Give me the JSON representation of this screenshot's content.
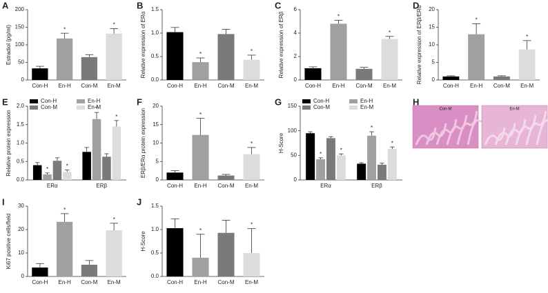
{
  "chart_data": [
    {
      "type": "bar",
      "panel_label": "A",
      "ylabel": "Estradiol (pg/ml)",
      "categories": [
        "Con-H",
        "En-H",
        "Con-M",
        "En-M"
      ],
      "values": [
        33,
        118,
        65,
        132
      ],
      "errors": [
        6,
        15,
        7,
        14
      ],
      "significance": [
        null,
        "*",
        null,
        "*"
      ],
      "colors": [
        "#000000",
        "#a0a0a0",
        "#7a7a7a",
        "#dcdcdc"
      ],
      "ylim": [
        0,
        200
      ],
      "yticks": [
        0,
        50,
        100,
        150,
        200
      ]
    },
    {
      "type": "bar",
      "panel_label": "B",
      "ylabel": "Relative expression of ERα",
      "categories": [
        "Con-H",
        "En-H",
        "Con-M",
        "En-M"
      ],
      "values": [
        1.02,
        0.38,
        0.98,
        0.43
      ],
      "errors": [
        0.1,
        0.09,
        0.1,
        0.1
      ],
      "significance": [
        null,
        "*",
        null,
        "*"
      ],
      "colors": [
        "#000000",
        "#a0a0a0",
        "#7a7a7a",
        "#dcdcdc"
      ],
      "ylim": [
        0,
        1.5
      ],
      "yticks": [
        {
          "value": 0,
          "label": "0.0"
        },
        {
          "value": 0.5,
          "label": "0.5"
        },
        {
          "value": 1,
          "label": "1.0"
        },
        {
          "value": 1.5,
          "label": "1.5"
        }
      ]
    },
    {
      "type": "bar",
      "panel_label": "C",
      "ylabel": "Relative expression of ERβ",
      "categories": [
        "Con-H",
        "En-H",
        "Con-M",
        "En-M"
      ],
      "values": [
        1.0,
        4.8,
        0.95,
        3.5
      ],
      "errors": [
        0.12,
        0.3,
        0.13,
        0.22
      ],
      "significance": [
        null,
        "*",
        null,
        "*"
      ],
      "colors": [
        "#000000",
        "#a0a0a0",
        "#7a7a7a",
        "#dcdcdc"
      ],
      "ylim": [
        0,
        6
      ],
      "yticks": [
        0,
        2,
        4,
        6
      ]
    },
    {
      "type": "bar",
      "panel_label": "D",
      "ylabel": "Relative expression of ERβ/ERα",
      "categories": [
        "Con-H",
        "En-H",
        "Con-M",
        "En-M"
      ],
      "values": [
        1.0,
        13,
        1.0,
        8.7
      ],
      "errors": [
        0.2,
        3,
        0.2,
        2.5
      ],
      "significance": [
        null,
        "*",
        null,
        "*"
      ],
      "colors": [
        "#000000",
        "#a0a0a0",
        "#7a7a7a",
        "#dcdcdc"
      ],
      "ylim": [
        0,
        20
      ],
      "yticks": [
        0,
        5,
        10,
        15,
        20
      ]
    },
    {
      "type": "grouped_bar",
      "panel_label": "E",
      "ylabel": "Relative protein expression",
      "categories": [
        "ERα",
        "ERβ"
      ],
      "series": [
        {
          "name": "Con-H",
          "color": "#000000",
          "values": [
            0.4,
            0.76
          ],
          "errors": [
            0.07,
            0.12
          ],
          "significance": [
            null,
            null
          ]
        },
        {
          "name": "En-H",
          "color": "#a0a0a0",
          "values": [
            0.15,
            1.65
          ],
          "errors": [
            0.04,
            0.18
          ],
          "significance": [
            "*",
            "*"
          ]
        },
        {
          "name": "Con-M",
          "color": "#7a7a7a",
          "values": [
            0.52,
            0.63
          ],
          "errors": [
            0.08,
            0.08
          ],
          "significance": [
            null,
            null
          ]
        },
        {
          "name": "En-M",
          "color": "#dcdcdc",
          "values": [
            0.22,
            1.45
          ],
          "errors": [
            0.05,
            0.16
          ],
          "significance": [
            "*",
            "*"
          ]
        }
      ],
      "legend": "top",
      "ylim": [
        0,
        2
      ],
      "yticks": [
        {
          "value": 0,
          "label": "0.0"
        },
        {
          "value": 0.5,
          "label": "0.5"
        },
        {
          "value": 1,
          "label": "1.0"
        },
        {
          "value": 1.5,
          "label": "1.5"
        },
        {
          "value": 2,
          "label": "2.0"
        }
      ]
    },
    {
      "type": "bar",
      "panel_label": "F",
      "ylabel": "ERβ/ERα protein expression",
      "categories": [
        "Con-H",
        "En-H",
        "Con-M",
        "En-M"
      ],
      "values": [
        2,
        12.2,
        1.2,
        7
      ],
      "errors": [
        0.5,
        4.5,
        0.3,
        1.8
      ],
      "significance": [
        null,
        "*",
        null,
        "*"
      ],
      "colors": [
        "#000000",
        "#a0a0a0",
        "#7a7a7a",
        "#dcdcdc"
      ],
      "ylim": [
        0,
        20
      ],
      "yticks": [
        0,
        5,
        10,
        15,
        20
      ]
    },
    {
      "type": "grouped_bar",
      "panel_label": "G",
      "ylabel": "H-Score",
      "categories": [
        "ERα",
        "ERβ"
      ],
      "series": [
        {
          "name": "Con-H",
          "color": "#000000",
          "values": [
            95,
            33
          ],
          "errors": [
            3,
            2
          ],
          "significance": [
            null,
            null
          ]
        },
        {
          "name": "En-H",
          "color": "#a0a0a0",
          "values": [
            42,
            90
          ],
          "errors": [
            3,
            8
          ],
          "significance": [
            "*",
            "*"
          ]
        },
        {
          "name": "Con-M",
          "color": "#7a7a7a",
          "values": [
            85,
            31
          ],
          "errors": [
            3,
            3
          ],
          "significance": [
            null,
            null
          ]
        },
        {
          "name": "En-M",
          "color": "#dcdcdc",
          "values": [
            50,
            63
          ],
          "errors": [
            3,
            4
          ],
          "significance": [
            "*",
            "*"
          ]
        }
      ],
      "legend": "top",
      "ylim": [
        0,
        150
      ],
      "yticks": [
        0,
        50,
        100,
        150
      ]
    },
    {
      "type": "image",
      "panel_label": "H",
      "images": [
        {
          "label": "Con-M"
        },
        {
          "label": "En-M"
        }
      ]
    },
    {
      "type": "bar",
      "panel_label": "I",
      "ylabel": "Ki67 positive cells/field",
      "categories": [
        "Con-H",
        "En-H",
        "Con-M",
        "En-M"
      ],
      "values": [
        3.8,
        23.3,
        5,
        19.7
      ],
      "errors": [
        1.7,
        3.5,
        1.8,
        3
      ],
      "significance": [
        null,
        "*",
        null,
        "*"
      ],
      "colors": [
        "#000000",
        "#a0a0a0",
        "#7a7a7a",
        "#dcdcdc"
      ],
      "ylim": [
        0,
        30
      ],
      "yticks": [
        0,
        10,
        20,
        30
      ]
    },
    {
      "type": "bar",
      "panel_label": "J",
      "ylabel": "H-Score",
      "categories": [
        "Con-H",
        "En-H",
        "Con-M",
        "En-M"
      ],
      "values": [
        1.03,
        0.4,
        0.93,
        0.5
      ],
      "errors": [
        0.2,
        0.5,
        0.27,
        0.52
      ],
      "significance": [
        null,
        "*",
        null,
        "*"
      ],
      "colors": [
        "#000000",
        "#a0a0a0",
        "#7a7a7a",
        "#dcdcdc"
      ],
      "ylim": [
        0,
        1.5
      ],
      "yticks": [
        {
          "value": 0,
          "label": "0.0"
        },
        {
          "value": 0.5,
          "label": "0.5"
        },
        {
          "value": 1,
          "label": "1.0"
        },
        {
          "value": 1.5,
          "label": "1.5"
        }
      ]
    }
  ]
}
